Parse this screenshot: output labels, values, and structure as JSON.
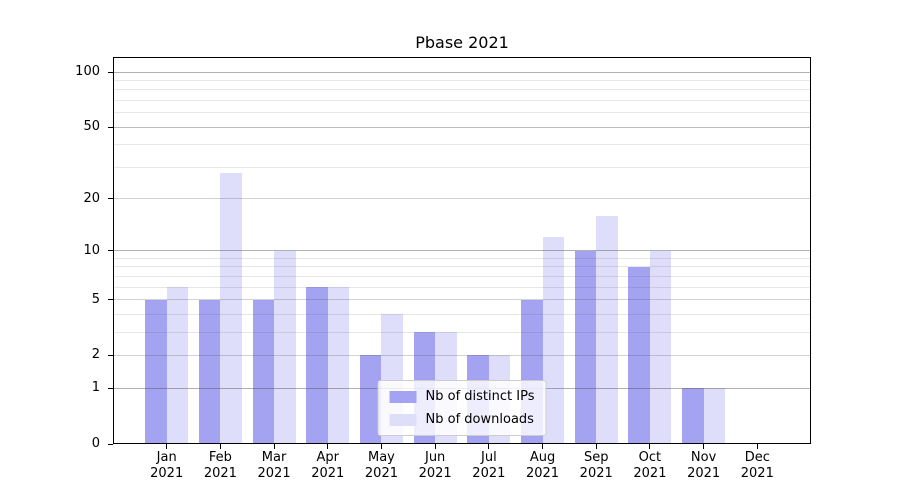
{
  "chart_data": {
    "type": "bar",
    "title": "Pbase 2021",
    "categories": [
      "Jan 2021",
      "Feb 2021",
      "Mar 2021",
      "Apr 2021",
      "May 2021",
      "Jun 2021",
      "Jul 2021",
      "Aug 2021",
      "Sep 2021",
      "Oct 2021",
      "Nov 2021",
      "Dec 2021"
    ],
    "series": [
      {
        "name": "Nb of distinct IPs",
        "color": "#a3a3f2",
        "values": [
          5,
          5,
          5,
          6,
          2,
          3,
          2,
          5,
          10,
          8,
          1,
          0
        ]
      },
      {
        "name": "Nb of downloads",
        "color": "#dedefb",
        "values": [
          6,
          28,
          10,
          6,
          4,
          3,
          2,
          12,
          16,
          10,
          1,
          0
        ]
      }
    ],
    "xlabel": "",
    "ylabel": "",
    "yscale": "log(1+v)",
    "yticks": [
      100,
      50,
      20,
      10,
      5,
      2,
      1,
      0
    ],
    "ylim": [
      0,
      121
    ],
    "grid": true,
    "legend_position": "lower center"
  }
}
